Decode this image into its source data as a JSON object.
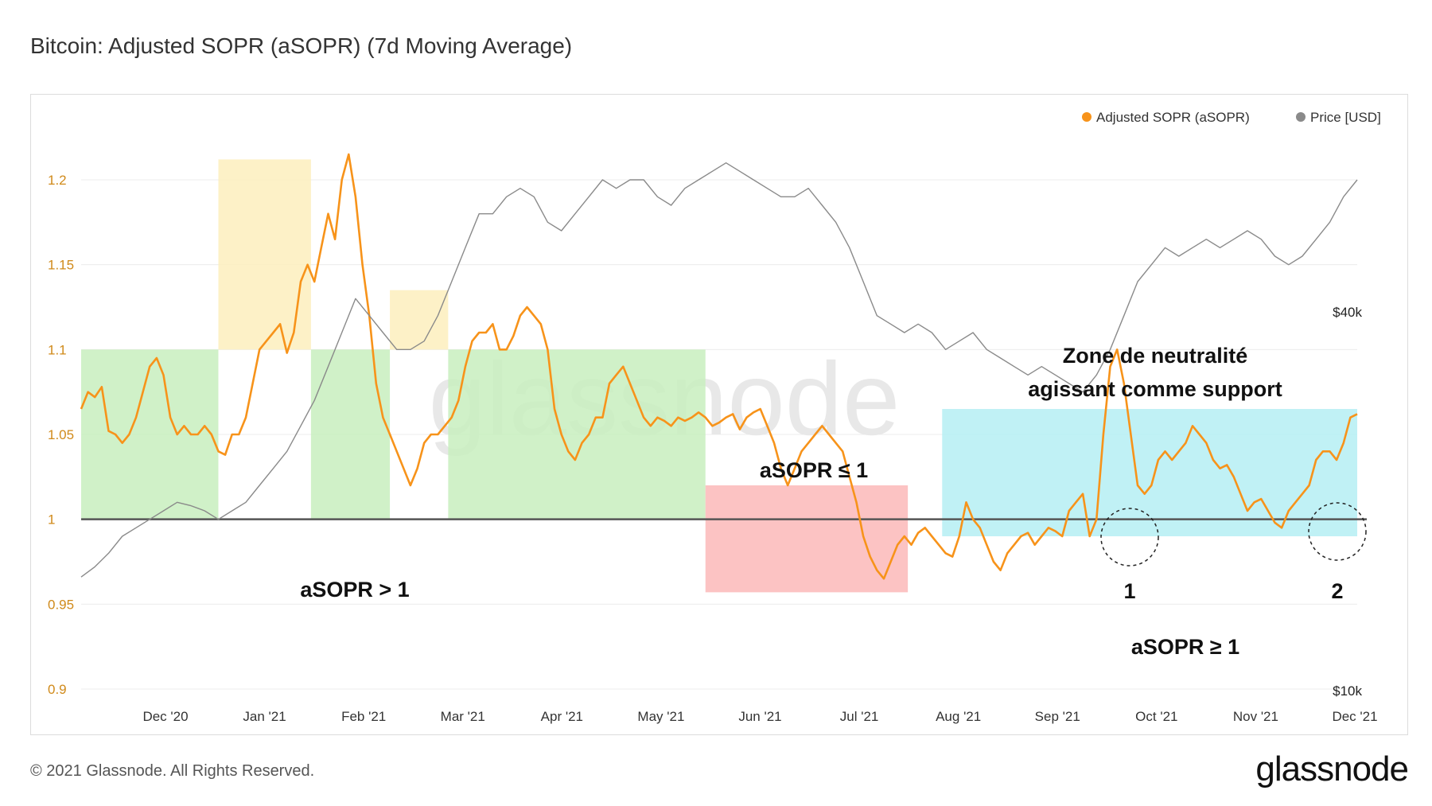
{
  "title": "Bitcoin: Adjusted SOPR (aSOPR) (7d Moving Average)",
  "footer": {
    "copyright": "© 2021 Glassnode. All Rights Reserved.",
    "logo": "glassnode"
  },
  "watermark": "glassnode",
  "colors": {
    "asopr": "#f7931a",
    "price": "#8a8a8a",
    "baseline": "#555555",
    "green": "#c8efbe",
    "yellow": "#fdeebd",
    "red": "#fbb8b8",
    "cyan": "#b5eff3"
  },
  "chart_data": {
    "type": "line",
    "title": "Bitcoin: Adjusted SOPR (aSOPR) (7d Moving Average)",
    "xlabel": "",
    "ylabel": "",
    "x_ticks": [
      "Dec '20",
      "Jan '21",
      "Feb '21",
      "Mar '21",
      "Apr '21",
      "May '21",
      "Jun '21",
      "Jul '21",
      "Aug '21",
      "Sep '21",
      "Oct '21",
      "Nov '21",
      "Dec '21"
    ],
    "y_ticks": [
      "0.9",
      "0.95",
      "1",
      "1.05",
      "1.1",
      "1.15",
      "1.2"
    ],
    "ylim": [
      0.9,
      1.23
    ],
    "price_axis_ticks": [
      "$10k",
      "$40k"
    ],
    "legend": [
      {
        "label": "Adjusted SOPR (aSOPR)",
        "color": "#f7931a"
      },
      {
        "label": "Price [USD]",
        "color": "#8a8a8a"
      }
    ],
    "x_range_days": [
      0,
      372
    ],
    "series": [
      {
        "name": "Adjusted SOPR (aSOPR)",
        "points": [
          [
            0,
            1.065
          ],
          [
            2,
            1.075
          ],
          [
            4,
            1.072
          ],
          [
            6,
            1.078
          ],
          [
            8,
            1.052
          ],
          [
            10,
            1.05
          ],
          [
            12,
            1.045
          ],
          [
            14,
            1.05
          ],
          [
            16,
            1.06
          ],
          [
            18,
            1.075
          ],
          [
            20,
            1.09
          ],
          [
            22,
            1.095
          ],
          [
            24,
            1.085
          ],
          [
            26,
            1.06
          ],
          [
            28,
            1.05
          ],
          [
            30,
            1.055
          ],
          [
            32,
            1.05
          ],
          [
            34,
            1.05
          ],
          [
            36,
            1.055
          ],
          [
            38,
            1.05
          ],
          [
            40,
            1.04
          ],
          [
            42,
            1.038
          ],
          [
            44,
            1.05
          ],
          [
            46,
            1.05
          ],
          [
            48,
            1.06
          ],
          [
            50,
            1.08
          ],
          [
            52,
            1.1
          ],
          [
            54,
            1.105
          ],
          [
            56,
            1.11
          ],
          [
            58,
            1.115
          ],
          [
            60,
            1.098
          ],
          [
            62,
            1.11
          ],
          [
            64,
            1.14
          ],
          [
            66,
            1.15
          ],
          [
            68,
            1.14
          ],
          [
            70,
            1.16
          ],
          [
            72,
            1.18
          ],
          [
            74,
            1.165
          ],
          [
            76,
            1.2
          ],
          [
            78,
            1.215
          ],
          [
            80,
            1.19
          ],
          [
            82,
            1.15
          ],
          [
            84,
            1.12
          ],
          [
            86,
            1.08
          ],
          [
            88,
            1.06
          ],
          [
            90,
            1.05
          ],
          [
            92,
            1.04
          ],
          [
            94,
            1.03
          ],
          [
            96,
            1.02
          ],
          [
            98,
            1.03
          ],
          [
            100,
            1.045
          ],
          [
            102,
            1.05
          ],
          [
            104,
            1.05
          ],
          [
            106,
            1.055
          ],
          [
            108,
            1.06
          ],
          [
            110,
            1.07
          ],
          [
            112,
            1.09
          ],
          [
            114,
            1.105
          ],
          [
            116,
            1.11
          ],
          [
            118,
            1.11
          ],
          [
            120,
            1.115
          ],
          [
            122,
            1.1
          ],
          [
            124,
            1.1
          ],
          [
            126,
            1.108
          ],
          [
            128,
            1.12
          ],
          [
            130,
            1.125
          ],
          [
            132,
            1.12
          ],
          [
            134,
            1.115
          ],
          [
            136,
            1.1
          ],
          [
            138,
            1.065
          ],
          [
            140,
            1.05
          ],
          [
            142,
            1.04
          ],
          [
            144,
            1.035
          ],
          [
            146,
            1.045
          ],
          [
            148,
            1.05
          ],
          [
            150,
            1.06
          ],
          [
            152,
            1.06
          ],
          [
            154,
            1.08
          ],
          [
            156,
            1.085
          ],
          [
            158,
            1.09
          ],
          [
            160,
            1.08
          ],
          [
            162,
            1.07
          ],
          [
            164,
            1.06
          ],
          [
            166,
            1.055
          ],
          [
            168,
            1.06
          ],
          [
            170,
            1.058
          ],
          [
            172,
            1.055
          ],
          [
            174,
            1.06
          ],
          [
            176,
            1.058
          ],
          [
            178,
            1.06
          ],
          [
            180,
            1.063
          ],
          [
            182,
            1.06
          ],
          [
            184,
            1.055
          ],
          [
            186,
            1.057
          ],
          [
            188,
            1.06
          ],
          [
            190,
            1.062
          ],
          [
            192,
            1.053
          ],
          [
            194,
            1.06
          ],
          [
            196,
            1.063
          ],
          [
            198,
            1.065
          ],
          [
            200,
            1.055
          ],
          [
            202,
            1.045
          ],
          [
            204,
            1.03
          ],
          [
            206,
            1.02
          ],
          [
            208,
            1.03
          ],
          [
            210,
            1.04
          ],
          [
            212,
            1.045
          ],
          [
            214,
            1.05
          ],
          [
            216,
            1.055
          ],
          [
            218,
            1.05
          ],
          [
            220,
            1.045
          ],
          [
            222,
            1.04
          ],
          [
            224,
            1.025
          ],
          [
            226,
            1.01
          ],
          [
            228,
            0.99
          ],
          [
            230,
            0.978
          ],
          [
            232,
            0.97
          ],
          [
            234,
            0.965
          ],
          [
            236,
            0.975
          ],
          [
            238,
            0.985
          ],
          [
            240,
            0.99
          ],
          [
            242,
            0.985
          ],
          [
            244,
            0.992
          ],
          [
            246,
            0.995
          ],
          [
            248,
            0.99
          ],
          [
            250,
            0.985
          ],
          [
            252,
            0.98
          ],
          [
            254,
            0.978
          ],
          [
            256,
            0.99
          ],
          [
            258,
            1.01
          ],
          [
            260,
            1.0
          ],
          [
            262,
            0.995
          ],
          [
            264,
            0.985
          ],
          [
            266,
            0.975
          ],
          [
            268,
            0.97
          ],
          [
            270,
            0.98
          ],
          [
            272,
            0.985
          ],
          [
            274,
            0.99
          ],
          [
            276,
            0.992
          ],
          [
            278,
            0.985
          ],
          [
            280,
            0.99
          ],
          [
            282,
            0.995
          ],
          [
            284,
            0.993
          ],
          [
            286,
            0.99
          ],
          [
            288,
            1.005
          ],
          [
            290,
            1.01
          ],
          [
            292,
            1.015
          ],
          [
            294,
            0.99
          ],
          [
            296,
            1.0
          ],
          [
            298,
            1.05
          ],
          [
            300,
            1.09
          ],
          [
            302,
            1.1
          ],
          [
            304,
            1.08
          ],
          [
            306,
            1.05
          ],
          [
            308,
            1.02
          ],
          [
            310,
            1.015
          ],
          [
            312,
            1.02
          ],
          [
            314,
            1.035
          ],
          [
            316,
            1.04
          ],
          [
            318,
            1.035
          ],
          [
            320,
            1.04
          ],
          [
            322,
            1.045
          ],
          [
            324,
            1.055
          ],
          [
            326,
            1.05
          ],
          [
            328,
            1.045
          ],
          [
            330,
            1.035
          ],
          [
            332,
            1.03
          ],
          [
            334,
            1.032
          ],
          [
            336,
            1.025
          ],
          [
            338,
            1.015
          ],
          [
            340,
            1.005
          ],
          [
            342,
            1.01
          ],
          [
            344,
            1.012
          ],
          [
            346,
            1.005
          ],
          [
            348,
            0.998
          ],
          [
            350,
            0.995
          ],
          [
            352,
            1.005
          ],
          [
            354,
            1.01
          ],
          [
            356,
            1.015
          ],
          [
            358,
            1.02
          ],
          [
            360,
            1.035
          ],
          [
            362,
            1.04
          ],
          [
            364,
            1.04
          ],
          [
            366,
            1.035
          ],
          [
            368,
            1.045
          ],
          [
            370,
            1.06
          ],
          [
            372,
            1.062
          ]
        ]
      },
      {
        "name": "Price [USD]",
        "points": [
          [
            0,
            0.966
          ],
          [
            4,
            0.972
          ],
          [
            8,
            0.98
          ],
          [
            12,
            0.99
          ],
          [
            16,
            0.995
          ],
          [
            20,
            1.0
          ],
          [
            24,
            1.005
          ],
          [
            28,
            1.01
          ],
          [
            32,
            1.008
          ],
          [
            36,
            1.005
          ],
          [
            40,
            1.0
          ],
          [
            44,
            1.005
          ],
          [
            48,
            1.01
          ],
          [
            52,
            1.02
          ],
          [
            56,
            1.03
          ],
          [
            60,
            1.04
          ],
          [
            64,
            1.055
          ],
          [
            68,
            1.07
          ],
          [
            72,
            1.09
          ],
          [
            76,
            1.11
          ],
          [
            80,
            1.13
          ],
          [
            84,
            1.12
          ],
          [
            88,
            1.11
          ],
          [
            92,
            1.1
          ],
          [
            96,
            1.1
          ],
          [
            100,
            1.105
          ],
          [
            104,
            1.12
          ],
          [
            108,
            1.14
          ],
          [
            112,
            1.16
          ],
          [
            116,
            1.18
          ],
          [
            120,
            1.18
          ],
          [
            124,
            1.19
          ],
          [
            128,
            1.195
          ],
          [
            132,
            1.19
          ],
          [
            136,
            1.175
          ],
          [
            140,
            1.17
          ],
          [
            144,
            1.18
          ],
          [
            148,
            1.19
          ],
          [
            152,
            1.2
          ],
          [
            156,
            1.195
          ],
          [
            160,
            1.2
          ],
          [
            164,
            1.2
          ],
          [
            168,
            1.19
          ],
          [
            172,
            1.185
          ],
          [
            176,
            1.195
          ],
          [
            180,
            1.2
          ],
          [
            184,
            1.205
          ],
          [
            188,
            1.21
          ],
          [
            192,
            1.205
          ],
          [
            196,
            1.2
          ],
          [
            200,
            1.195
          ],
          [
            204,
            1.19
          ],
          [
            208,
            1.19
          ],
          [
            212,
            1.195
          ],
          [
            216,
            1.185
          ],
          [
            220,
            1.175
          ],
          [
            224,
            1.16
          ],
          [
            228,
            1.14
          ],
          [
            232,
            1.12
          ],
          [
            236,
            1.115
          ],
          [
            240,
            1.11
          ],
          [
            244,
            1.115
          ],
          [
            248,
            1.11
          ],
          [
            252,
            1.1
          ],
          [
            256,
            1.105
          ],
          [
            260,
            1.11
          ],
          [
            264,
            1.1
          ],
          [
            268,
            1.095
          ],
          [
            272,
            1.09
          ],
          [
            276,
            1.085
          ],
          [
            280,
            1.09
          ],
          [
            284,
            1.085
          ],
          [
            288,
            1.08
          ],
          [
            292,
            1.075
          ],
          [
            296,
            1.085
          ],
          [
            300,
            1.1
          ],
          [
            304,
            1.12
          ],
          [
            308,
            1.14
          ],
          [
            312,
            1.15
          ],
          [
            316,
            1.16
          ],
          [
            320,
            1.155
          ],
          [
            324,
            1.16
          ],
          [
            328,
            1.165
          ],
          [
            332,
            1.16
          ],
          [
            336,
            1.165
          ],
          [
            340,
            1.17
          ],
          [
            344,
            1.165
          ],
          [
            348,
            1.155
          ],
          [
            352,
            1.15
          ],
          [
            356,
            1.155
          ],
          [
            360,
            1.165
          ],
          [
            364,
            1.175
          ],
          [
            368,
            1.19
          ],
          [
            372,
            1.2
          ]
        ]
      }
    ],
    "regions": [
      {
        "label": "green-1",
        "color": "green",
        "x0": 0,
        "x1": 40,
        "y0": 1.0,
        "y1": 1.1
      },
      {
        "label": "yellow-1",
        "color": "yellow",
        "x0": 40,
        "x1": 67,
        "y0": 1.1,
        "y1": 1.212
      },
      {
        "label": "green-2",
        "color": "green",
        "x0": 67,
        "x1": 90,
        "y0": 1.0,
        "y1": 1.1
      },
      {
        "label": "yellow-2",
        "color": "yellow",
        "x0": 90,
        "x1": 107,
        "y0": 1.1,
        "y1": 1.135
      },
      {
        "label": "green-3",
        "color": "green",
        "x0": 107,
        "x1": 182,
        "y0": 1.0,
        "y1": 1.1
      },
      {
        "label": "red-1",
        "color": "red",
        "x0": 182,
        "x1": 241,
        "y0": 0.957,
        "y1": 1.02
      },
      {
        "label": "cyan-1",
        "color": "cyan",
        "x0": 251,
        "x1": 372,
        "y0": 0.99,
        "y1": 1.065
      }
    ],
    "annotations": {
      "asopr_gt": "aSOPR > 1",
      "asopr_le": "aSOPR ≤  1",
      "asopr_ge": "aSOPR ≥ 1",
      "zone_line1": "Zone de neutralité",
      "zone_line2": "agissant comme support",
      "marker1": "1",
      "marker2": "2"
    }
  }
}
